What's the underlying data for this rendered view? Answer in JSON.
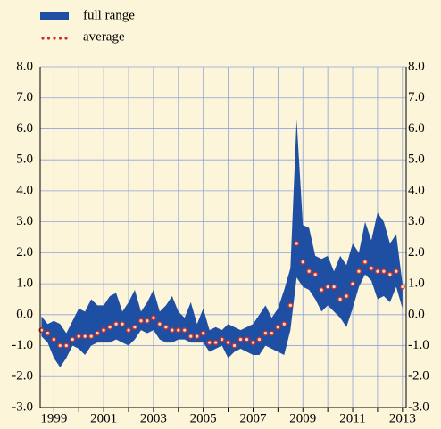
{
  "chart_data": {
    "type": "range_line",
    "background": "#fdf5d9",
    "grid": true,
    "grid_color": "#8fa3d8",
    "legend": "top-left",
    "x": [
      1998.5,
      1998.75,
      1999.0,
      1999.25,
      1999.5,
      1999.75,
      2000.0,
      2000.25,
      2000.5,
      2000.75,
      2001.0,
      2001.25,
      2001.5,
      2001.75,
      2002.0,
      2002.25,
      2002.5,
      2002.75,
      2003.0,
      2003.25,
      2003.5,
      2003.75,
      2004.0,
      2004.25,
      2004.5,
      2004.75,
      2005.0,
      2005.25,
      2005.5,
      2005.75,
      2006.0,
      2006.25,
      2006.5,
      2006.75,
      2007.0,
      2007.25,
      2007.5,
      2007.75,
      2008.0,
      2008.25,
      2008.5,
      2008.75,
      2009.0,
      2009.25,
      2009.5,
      2009.75,
      2010.0,
      2010.25,
      2010.5,
      2010.75,
      2011.0,
      2011.25,
      2011.5,
      2011.75,
      2012.0,
      2012.25,
      2012.5,
      2012.75,
      2013.0
    ],
    "series": [
      {
        "name": "full range",
        "color": "#1f4fa3",
        "low": [
          -0.7,
          -0.9,
          -1.4,
          -1.7,
          -1.4,
          -1.0,
          -1.1,
          -1.3,
          -1.0,
          -0.9,
          -0.9,
          -0.9,
          -0.8,
          -0.9,
          -1.0,
          -0.8,
          -0.5,
          -0.6,
          -0.5,
          -0.8,
          -0.9,
          -0.9,
          -0.8,
          -0.8,
          -0.9,
          -0.9,
          -0.9,
          -1.2,
          -1.1,
          -1.0,
          -1.4,
          -1.2,
          -1.1,
          -1.2,
          -1.3,
          -1.3,
          -1.0,
          -1.1,
          -1.2,
          -1.3,
          -0.5,
          1.2,
          0.9,
          0.8,
          0.5,
          0.1,
          0.3,
          0.1,
          -0.1,
          -0.4,
          0.2,
          0.9,
          1.3,
          1.1,
          0.5,
          0.6,
          0.4,
          0.9,
          0.2
        ],
        "high": [
          -0.05,
          -0.3,
          -0.2,
          -0.3,
          -0.6,
          -0.2,
          0.2,
          0.1,
          0.5,
          0.3,
          0.3,
          0.6,
          0.7,
          0.1,
          0.4,
          0.8,
          0.1,
          0.4,
          0.8,
          0.1,
          0.3,
          0.6,
          0.1,
          -0.1,
          0.4,
          -0.3,
          0.2,
          -0.5,
          -0.4,
          -0.5,
          -0.3,
          -0.4,
          -0.5,
          -0.4,
          -0.3,
          0.0,
          0.3,
          -0.1,
          0.2,
          0.8,
          1.5,
          6.3,
          2.9,
          2.8,
          1.9,
          1.8,
          1.9,
          1.4,
          1.9,
          1.6,
          2.3,
          2.0,
          3.0,
          2.4,
          3.3,
          3.0,
          2.3,
          2.6,
          1.0
        ]
      },
      {
        "name": "average",
        "color": "#c8322b",
        "values": [
          -0.5,
          -0.6,
          -0.8,
          -1.0,
          -1.0,
          -0.8,
          -0.7,
          -0.7,
          -0.7,
          -0.6,
          -0.5,
          -0.4,
          -0.3,
          -0.3,
          -0.5,
          -0.4,
          -0.2,
          -0.2,
          -0.1,
          -0.3,
          -0.4,
          -0.5,
          -0.5,
          -0.5,
          -0.7,
          -0.7,
          -0.6,
          -0.9,
          -0.9,
          -0.8,
          -0.9,
          -1.0,
          -0.8,
          -0.8,
          -0.9,
          -0.8,
          -0.6,
          -0.6,
          -0.4,
          -0.3,
          0.3,
          2.3,
          1.7,
          1.4,
          1.3,
          0.8,
          0.9,
          0.9,
          0.5,
          0.6,
          1.0,
          1.4,
          1.7,
          1.5,
          1.4,
          1.4,
          1.3,
          1.4,
          0.9
        ]
      }
    ],
    "xlim": [
      1998.45,
      2013.15
    ],
    "xticks": [
      1999,
      2001,
      2003,
      2005,
      2007,
      2009,
      2011,
      2013
    ],
    "xminorticks": [
      2000,
      2002,
      2004,
      2006,
      2008,
      2010,
      2012
    ],
    "ylim": [
      -3,
      8
    ],
    "yticks": [
      {
        "value": -3,
        "label": "-3.0"
      },
      {
        "value": -2,
        "label": "-2.0"
      },
      {
        "value": -1,
        "label": "-1.0"
      },
      {
        "value": 0,
        "label": "0.0"
      },
      {
        "value": 1,
        "label": "1.0"
      },
      {
        "value": 2,
        "label": "2.0"
      },
      {
        "value": 3,
        "label": "3.0"
      },
      {
        "value": 4,
        "label": "4.0"
      },
      {
        "value": 5,
        "label": "5.0"
      },
      {
        "value": 6,
        "label": "6.0"
      },
      {
        "value": 7,
        "label": "7.0"
      },
      {
        "value": 8,
        "label": "8.0"
      }
    ]
  }
}
